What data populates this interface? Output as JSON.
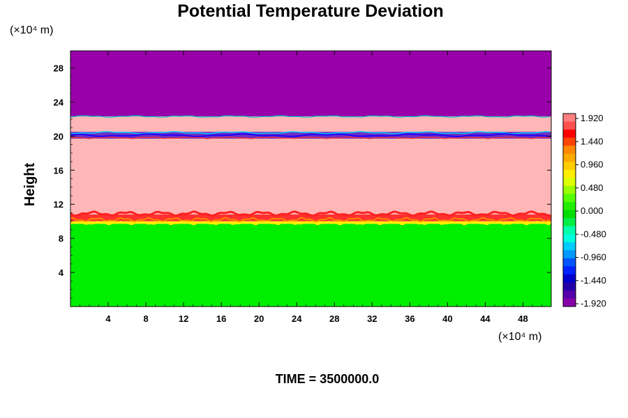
{
  "chart_data": {
    "type": "heatmap",
    "title": "Potential Temperature Deviation",
    "ylabel": "Height",
    "xlabel": "",
    "x_unit": "(×10⁴ m)",
    "y_unit": "(×10⁴ m)",
    "xlim": [
      0,
      51
    ],
    "ylim": [
      0,
      30
    ],
    "x_ticks": [
      4,
      8,
      12,
      16,
      20,
      24,
      28,
      32,
      36,
      40,
      44,
      48
    ],
    "y_ticks": [
      4,
      8,
      12,
      16,
      20,
      24,
      28
    ],
    "layers": [
      {
        "y0": 22.3,
        "y1": 30.0,
        "value": -1.92,
        "color": "#9900aa"
      },
      {
        "y0": 20.5,
        "y1": 22.3,
        "value": 1.92,
        "color": "#ffb6b6"
      },
      {
        "y0": 19.7,
        "y1": 20.5,
        "value": -1.2,
        "color": "#7030c0"
      },
      {
        "y0": 10.8,
        "y1": 19.7,
        "value": 1.92,
        "color": "#ffb6b6"
      },
      {
        "y0": 10.0,
        "y1": 10.8,
        "value": 1.5,
        "color": "#ff3030"
      },
      {
        "y0": 9.7,
        "y1": 10.0,
        "value": 0.6,
        "color": "#ffee00"
      },
      {
        "y0": 0.0,
        "y1": 9.7,
        "value": 0.0,
        "color": "#00ee00"
      }
    ],
    "colorbar": {
      "labels": [
        "1.920",
        "1.440",
        "0.960",
        "0.480",
        "0.000",
        "-0.480",
        "-0.960",
        "-1.440",
        "-1.920"
      ],
      "colors": [
        "#ff8080",
        "#ff5050",
        "#ff0000",
        "#ff4400",
        "#ff8800",
        "#ffaa00",
        "#ffcc00",
        "#ffee00",
        "#ddff00",
        "#99ff00",
        "#55ff00",
        "#22ee00",
        "#00dd00",
        "#00ee44",
        "#00ffaa",
        "#00ffdd",
        "#00ccff",
        "#0099ff",
        "#0055ff",
        "#0022ff",
        "#0000cc",
        "#2200aa",
        "#5500aa",
        "#8800aa"
      ]
    }
  },
  "footer": "TIME = 3500000.0"
}
